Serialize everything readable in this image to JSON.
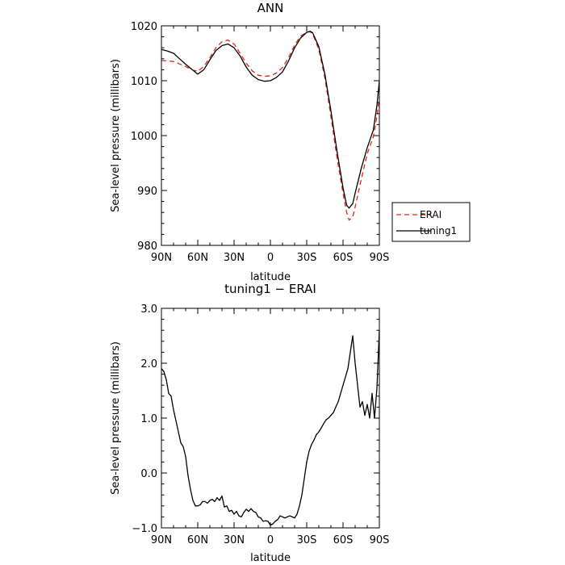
{
  "chart_data": [
    {
      "type": "line",
      "title": "ANN",
      "xlabel": "latitude",
      "ylabel": "Sea-level pressure (millibars)",
      "xlim": [
        -90,
        90
      ],
      "ylim": [
        980,
        1020
      ],
      "x_ticks": [
        -90,
        -60,
        -30,
        0,
        30,
        60,
        90
      ],
      "x_tick_labels": [
        "90N",
        "60N",
        "30N",
        "0",
        "30S",
        "60S",
        "90S"
      ],
      "y_ticks": [
        980,
        990,
        1000,
        1010,
        1020
      ],
      "y_tick_labels": [
        "980",
        "990",
        "1000",
        "1010",
        "1020"
      ],
      "legend": {
        "position": "right",
        "entries": [
          "ERAI",
          "tuning1"
        ]
      },
      "series": [
        {
          "name": "ERAI",
          "color": "#e8201a",
          "dash": "dashed",
          "x": [
            -90,
            -80,
            -70,
            -65,
            -60,
            -55,
            -50,
            -45,
            -40,
            -35,
            -30,
            -25,
            -20,
            -15,
            -10,
            -5,
            0,
            5,
            10,
            15,
            20,
            25,
            30,
            33,
            35,
            40,
            45,
            50,
            55,
            60,
            63,
            65,
            68,
            70,
            75,
            80,
            85,
            88,
            90
          ],
          "y": [
            1013.7,
            1013.5,
            1012.6,
            1012.0,
            1011.7,
            1012.6,
            1014.2,
            1016.0,
            1017.1,
            1017.4,
            1016.7,
            1015.0,
            1013.2,
            1011.8,
            1011.0,
            1010.8,
            1010.9,
            1011.4,
            1012.4,
            1014.2,
            1016.5,
            1018.1,
            1018.9,
            1018.9,
            1018.5,
            1015.7,
            1010.5,
            1003.5,
            996.0,
            989.5,
            986.0,
            984.6,
            985.2,
            987.0,
            992.0,
            996.7,
            999.8,
            1003.5,
            1007.0
          ]
        },
        {
          "name": "tuning1",
          "color": "#000000",
          "dash": "solid",
          "x": [
            -90,
            -85,
            -80,
            -75,
            -70,
            -65,
            -60,
            -55,
            -50,
            -45,
            -40,
            -35,
            -30,
            -25,
            -20,
            -15,
            -10,
            -5,
            0,
            5,
            10,
            15,
            20,
            25,
            30,
            33,
            35,
            40,
            45,
            50,
            55,
            60,
            63,
            65,
            68,
            70,
            75,
            80,
            85,
            88,
            90
          ],
          "y": [
            1015.7,
            1015.4,
            1015.0,
            1014.0,
            1013.0,
            1012.1,
            1011.2,
            1012.0,
            1013.8,
            1015.5,
            1016.4,
            1016.7,
            1016.0,
            1014.5,
            1012.5,
            1011.0,
            1010.2,
            1009.9,
            1010.0,
            1010.6,
            1011.6,
            1013.6,
            1016.0,
            1017.8,
            1018.8,
            1019.0,
            1018.7,
            1016.2,
            1011.2,
            1004.5,
            997.2,
            990.5,
            987.3,
            986.8,
            987.6,
            989.5,
            994.0,
            997.8,
            1001.0,
            1005.5,
            1010.0
          ]
        }
      ]
    },
    {
      "type": "line",
      "title": "tuning1 − ERAI",
      "xlabel": "latitude",
      "ylabel": "Sea-level pressure (millibars)",
      "xlim": [
        -90,
        90
      ],
      "ylim": [
        -1.0,
        3.0
      ],
      "x_ticks": [
        -90,
        -60,
        -30,
        0,
        30,
        60,
        90
      ],
      "x_tick_labels": [
        "90N",
        "60N",
        "30N",
        "0",
        "30S",
        "60S",
        "90S"
      ],
      "y_ticks": [
        -1.0,
        0.0,
        1.0,
        2.0,
        3.0
      ],
      "y_tick_labels": [
        "−1.0",
        "0.0",
        "1.0",
        "2.0",
        "3.0"
      ],
      "series": [
        {
          "color": "#000000",
          "dash": "solid",
          "x": [
            -90,
            -88,
            -86,
            -84,
            -82,
            -80,
            -78,
            -76,
            -74,
            -72,
            -70,
            -68,
            -66,
            -64,
            -62,
            -60,
            -58,
            -56,
            -54,
            -52,
            -50,
            -48,
            -46,
            -44,
            -42,
            -40,
            -38,
            -36,
            -34,
            -32,
            -30,
            -28,
            -26,
            -24,
            -22,
            -20,
            -18,
            -16,
            -14,
            -12,
            -10,
            -8,
            -6,
            -4,
            -2,
            0,
            2,
            4,
            6,
            8,
            10,
            12,
            14,
            16,
            18,
            20,
            22,
            24,
            26,
            28,
            30,
            32,
            34,
            36,
            38,
            40,
            42,
            44,
            46,
            48,
            50,
            52,
            54,
            56,
            58,
            60,
            62,
            64,
            66,
            68,
            70,
            72,
            74,
            76,
            78,
            80,
            82,
            84,
            86,
            88,
            90
          ],
          "y": [
            1.9,
            1.85,
            1.7,
            1.45,
            1.4,
            1.15,
            0.95,
            0.75,
            0.55,
            0.48,
            0.3,
            -0.05,
            -0.3,
            -0.5,
            -0.6,
            -0.6,
            -0.58,
            -0.52,
            -0.52,
            -0.55,
            -0.5,
            -0.48,
            -0.52,
            -0.45,
            -0.5,
            -0.42,
            -0.62,
            -0.6,
            -0.7,
            -0.68,
            -0.75,
            -0.7,
            -0.78,
            -0.8,
            -0.72,
            -0.66,
            -0.7,
            -0.65,
            -0.7,
            -0.72,
            -0.8,
            -0.82,
            -0.88,
            -0.87,
            -0.88,
            -0.95,
            -0.93,
            -0.88,
            -0.85,
            -0.78,
            -0.8,
            -0.82,
            -0.8,
            -0.78,
            -0.8,
            -0.82,
            -0.75,
            -0.6,
            -0.4,
            -0.1,
            0.2,
            0.4,
            0.52,
            0.6,
            0.7,
            0.75,
            0.82,
            0.9,
            0.97,
            1.0,
            1.05,
            1.1,
            1.2,
            1.3,
            1.45,
            1.6,
            1.75,
            1.9,
            2.2,
            2.5,
            2.0,
            1.6,
            1.2,
            1.3,
            1.05,
            1.25,
            1.0,
            1.45,
            1.0,
            1.55,
            2.6
          ]
        }
      ]
    }
  ]
}
